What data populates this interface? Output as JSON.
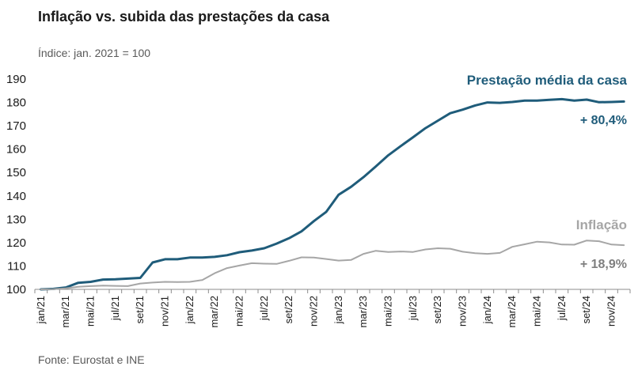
{
  "chart_data": {
    "type": "line",
    "title": "Inflação vs. subida das prestações da casa",
    "subtitle": "Índice: jan. 2021 = 100",
    "source": "Fonte: Eurostat e INE",
    "xlabel": "",
    "ylabel": "",
    "ylim": [
      100,
      190
    ],
    "yticks": [
      100,
      110,
      120,
      130,
      140,
      150,
      160,
      170,
      180,
      190
    ],
    "grid": false,
    "x": [
      "jan/21",
      "fev/21",
      "mar/21",
      "abr/21",
      "mai/21",
      "jun/21",
      "jul/21",
      "ago/21",
      "set/21",
      "out/21",
      "nov/21",
      "dez/21",
      "jan/22",
      "fev/22",
      "mar/22",
      "abr/22",
      "mai/22",
      "jun/22",
      "jul/22",
      "ago/22",
      "set/22",
      "out/22",
      "nov/22",
      "dez/22",
      "jan/23",
      "fev/23",
      "mar/23",
      "abr/23",
      "mai/23",
      "jun/23",
      "jul/23",
      "ago/23",
      "set/23",
      "out/23",
      "nov/23",
      "dez/23",
      "jan/24",
      "fev/24",
      "mar/24",
      "abr/24",
      "mai/24",
      "jun/24",
      "jul/24",
      "ago/24",
      "set/24",
      "out/24",
      "nov/24",
      "dez/24"
    ],
    "tick_labels": [
      "jan/21",
      "mar/21",
      "mai/21",
      "jul/21",
      "set/21",
      "nov/21",
      "jan/22",
      "mar/22",
      "mai/22",
      "jul/22",
      "set/22",
      "nov/22",
      "jan/23",
      "mar/23",
      "mai/23",
      "jul/23",
      "set/23",
      "nov/23",
      "jan/24",
      "mar/24",
      "mai/24",
      "jul/24",
      "set/24",
      "nov/24"
    ],
    "series": [
      {
        "name": "Prestação média da casa",
        "color": "#1f5c7a",
        "annotation": "+ 80,4%",
        "values": [
          100,
          100.2,
          100.8,
          102.8,
          103.2,
          104.2,
          104.3,
          104.6,
          104.9,
          111.5,
          112.9,
          112.9,
          113.6,
          113.6,
          113.9,
          114.6,
          115.9,
          116.6,
          117.6,
          119.6,
          121.9,
          124.8,
          129.2,
          133.2,
          140.5,
          143.9,
          148.0,
          152.6,
          157.4,
          161.3,
          165.1,
          169.0,
          172.2,
          175.4,
          176.9,
          178.7,
          180.0,
          179.8,
          180.2,
          180.8,
          180.8,
          181.1,
          181.4,
          180.8,
          181.2,
          180.1,
          180.2,
          180.4
        ]
      },
      {
        "name": "Inflação",
        "color": "#a6a6a6",
        "annotation": "+ 18,9%",
        "values": [
          100,
          100.1,
          100.4,
          101.1,
          101.4,
          101.6,
          101.5,
          101.4,
          102.5,
          102.9,
          103.2,
          103.1,
          103.2,
          104.0,
          106.9,
          109.1,
          110.2,
          111.2,
          111.0,
          110.9,
          112.2,
          113.7,
          113.6,
          113.0,
          112.3,
          112.6,
          115.2,
          116.5,
          116.0,
          116.2,
          116.0,
          117.1,
          117.6,
          117.4,
          116.1,
          115.5,
          115.2,
          115.6,
          118.2,
          119.3,
          120.4,
          120.1,
          119.2,
          119.1,
          120.9,
          120.6,
          119.2,
          118.9
        ]
      }
    ]
  }
}
